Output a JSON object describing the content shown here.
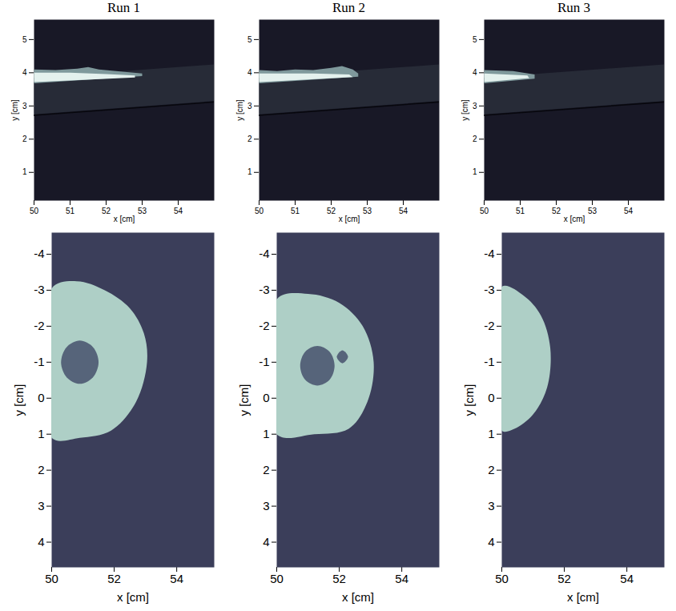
{
  "chart_data": [
    {
      "type": "image",
      "title": "Run 1",
      "xlabel": "x [cm]",
      "ylabel": "y [cm]",
      "color": "#181826",
      "xlim": [
        50,
        55
      ],
      "ylim": [
        0.15,
        5.6
      ],
      "xticks": [
        50,
        51,
        52,
        53,
        54
      ],
      "yticks": [
        1,
        2,
        3,
        4,
        5
      ],
      "series": [
        {
          "type": "area",
          "line_style": "straight",
          "color": "#272b37",
          "x": [
            50,
            55,
            55,
            50
          ],
          "values": [
            2.75,
            3.15,
            4.25,
            3.85
          ]
        },
        {
          "type": "line",
          "line_style": "straight",
          "color": "#07070d",
          "x": [
            50,
            55
          ],
          "values": [
            2.72,
            3.12
          ]
        },
        {
          "type": "area",
          "line_style": "straight",
          "color": "#7f999c",
          "x": [
            50,
            50.6,
            51.2,
            51.5,
            51.8,
            52.4,
            53,
            53,
            50
          ],
          "values": [
            4.1,
            4.08,
            4.12,
            4.17,
            4.1,
            4.04,
            3.98,
            3.9,
            3.68
          ]
        },
        {
          "type": "area",
          "line_style": "straight",
          "color": "#e4f1ee",
          "x": [
            50,
            51,
            52,
            52.8,
            52.8,
            50
          ],
          "values": [
            4.0,
            4.0,
            3.96,
            3.92,
            3.86,
            3.72
          ]
        }
      ]
    },
    {
      "type": "image",
      "title": "Run 2",
      "xlabel": "x [cm]",
      "ylabel": "y [cm]",
      "color": "#181826",
      "xlim": [
        50,
        55
      ],
      "ylim": [
        0.15,
        5.6
      ],
      "xticks": [
        50,
        51,
        52,
        53,
        54
      ],
      "yticks": [
        1,
        2,
        3,
        4,
        5
      ],
      "series": [
        {
          "type": "area",
          "line_style": "straight",
          "color": "#272b37",
          "x": [
            50,
            55,
            55,
            50
          ],
          "values": [
            2.75,
            3.15,
            4.25,
            3.85
          ]
        },
        {
          "type": "line",
          "line_style": "straight",
          "color": "#07070d",
          "x": [
            50,
            55
          ],
          "values": [
            2.72,
            3.12
          ]
        },
        {
          "type": "area",
          "line_style": "straight",
          "color": "#7f999c",
          "x": [
            50,
            50.5,
            51,
            51.5,
            52,
            52.3,
            52.6,
            52.75,
            52.75,
            50
          ],
          "values": [
            4.08,
            4.05,
            4.1,
            4.08,
            4.15,
            4.2,
            4.1,
            3.98,
            3.88,
            3.68
          ]
        },
        {
          "type": "area",
          "line_style": "straight",
          "color": "#e4f1ee",
          "x": [
            50,
            51.5,
            52.5,
            52.6,
            50
          ],
          "values": [
            3.98,
            3.98,
            3.95,
            3.87,
            3.72
          ]
        }
      ]
    },
    {
      "type": "image",
      "title": "Run 3",
      "xlabel": "x [cm]",
      "ylabel": "y [cm]",
      "color": "#181826",
      "xlim": [
        50,
        55
      ],
      "ylim": [
        0.15,
        5.6
      ],
      "xticks": [
        50,
        51,
        52,
        53,
        54
      ],
      "yticks": [
        1,
        2,
        3,
        4,
        5
      ],
      "series": [
        {
          "type": "area",
          "line_style": "straight",
          "color": "#272b37",
          "x": [
            50,
            55,
            55,
            50
          ],
          "values": [
            2.75,
            3.15,
            4.25,
            3.85
          ]
        },
        {
          "type": "line",
          "line_style": "straight",
          "color": "#07070d",
          "x": [
            50,
            55
          ],
          "values": [
            2.72,
            3.12
          ]
        },
        {
          "type": "area",
          "line_style": "straight",
          "color": "#7f999c",
          "x": [
            50,
            50.8,
            51.4,
            51.4,
            50
          ],
          "values": [
            4.08,
            4.05,
            3.95,
            3.82,
            3.68
          ]
        },
        {
          "type": "area",
          "line_style": "straight",
          "color": "#e4f1ee",
          "x": [
            50,
            51.2,
            51.25,
            50
          ],
          "values": [
            3.98,
            3.92,
            3.84,
            3.72
          ]
        }
      ]
    },
    {
      "type": "image",
      "xlabel": "x [cm]",
      "ylabel": "y [cm]",
      "color": "#3b3e5a",
      "xlim": [
        50,
        55.2
      ],
      "ylim": [
        4.7,
        -4.6
      ],
      "xticks": [
        50,
        52,
        54
      ],
      "yticks": [
        -4,
        -3,
        -2,
        -1,
        0,
        1,
        2,
        3,
        4
      ],
      "series": [
        {
          "type": "area",
          "line_style": "smooth",
          "color": "#aecfc6",
          "x": [
            50,
            50.8,
            51.7,
            52.5,
            52.95,
            53.05,
            52.7,
            51.9,
            50.9,
            50
          ],
          "values": [
            -3.05,
            -3.25,
            -3.0,
            -2.5,
            -1.8,
            -1.0,
            0.1,
            0.9,
            1.1,
            1.1
          ]
        },
        {
          "type": "area",
          "line_style": "smooth",
          "color": "#56647a",
          "x": [
            51.5,
            51.32,
            50.9,
            50.48,
            50.3,
            50.48,
            50.9,
            51.32
          ],
          "values": [
            -1.0,
            -0.58,
            -0.4,
            -0.58,
            -1.0,
            -1.42,
            -1.6,
            -1.42
          ]
        }
      ]
    },
    {
      "type": "image",
      "xlabel": "x [cm]",
      "ylabel": "y [cm]",
      "color": "#3b3e5a",
      "xlim": [
        50,
        55.2
      ],
      "ylim": [
        4.7,
        -4.6
      ],
      "xticks": [
        50,
        52,
        54
      ],
      "yticks": [
        -4,
        -3,
        -2,
        -1,
        0,
        1,
        2,
        3,
        4
      ],
      "series": [
        {
          "type": "area",
          "line_style": "smooth",
          "color": "#aecfc6",
          "x": [
            50,
            51,
            52,
            52.75,
            53.1,
            52.9,
            52.3,
            51.2,
            50
          ],
          "values": [
            -2.75,
            -2.9,
            -2.65,
            -2.0,
            -1.0,
            0.1,
            0.85,
            1.0,
            1.0
          ]
        },
        {
          "type": "area",
          "line_style": "smooth",
          "color": "#56647a",
          "x": [
            51.85,
            51.69,
            51.3,
            50.91,
            50.75,
            50.91,
            51.3,
            51.69
          ],
          "values": [
            -0.9,
            -0.51,
            -0.35,
            -0.51,
            -0.9,
            -1.29,
            -1.45,
            -1.29
          ]
        },
        {
          "type": "area",
          "line_style": "smooth",
          "color": "#56647a",
          "x": [
            52.28,
            52.1,
            51.92,
            52.1
          ],
          "values": [
            -1.15,
            -0.97,
            -1.15,
            -1.33
          ]
        }
      ]
    },
    {
      "type": "image",
      "xlabel": "x [cm]",
      "ylabel": "y [cm]",
      "color": "#3b3e5a",
      "xlim": [
        50,
        55.2
      ],
      "ylim": [
        4.7,
        -4.6
      ],
      "xticks": [
        50,
        52,
        54
      ],
      "yticks": [
        -4,
        -3,
        -2,
        -1,
        0,
        1,
        2,
        3,
        4
      ],
      "series": [
        {
          "type": "area",
          "line_style": "smooth",
          "color": "#aecfc6",
          "x": [
            50,
            50.7,
            51.25,
            51.55,
            51.45,
            51.0,
            50.4,
            50
          ],
          "values": [
            -3.1,
            -2.85,
            -2.3,
            -1.4,
            -0.3,
            0.45,
            0.85,
            0.9
          ]
        }
      ]
    }
  ]
}
